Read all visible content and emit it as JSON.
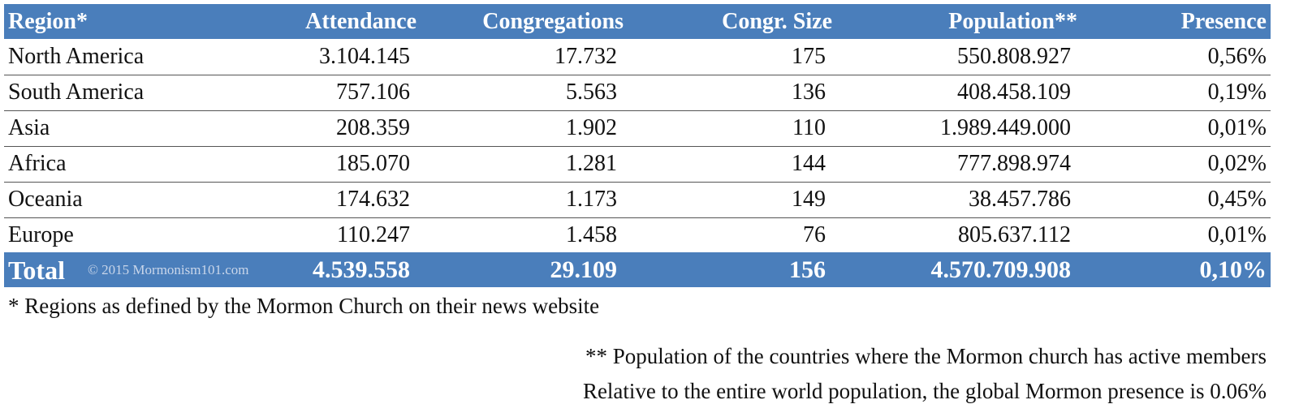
{
  "table": {
    "headers": [
      "Region*",
      "Attendance",
      "Congregations",
      "Congr. Size",
      "Population**",
      "Presence"
    ],
    "rows": [
      [
        "North America",
        "3.104.145",
        "17.732",
        "175",
        "550.808.927",
        "0,56%"
      ],
      [
        "South America",
        "757.106",
        "5.563",
        "136",
        "408.458.109",
        "0,19%"
      ],
      [
        "Asia",
        "208.359",
        "1.902",
        "110",
        "1.989.449.000",
        "0,01%"
      ],
      [
        "Africa",
        "185.070",
        "1.281",
        "144",
        "777.898.974",
        "0,02%"
      ],
      [
        "Oceania",
        "174.632",
        "1.173",
        "149",
        "38.457.786",
        "0,45%"
      ],
      [
        "Europe",
        "110.247",
        "1.458",
        "76",
        "805.637.112",
        "0,01%"
      ]
    ],
    "total": {
      "label": "Total",
      "watermark": "© 2015 Mormonism101.com",
      "cells": [
        "4.539.558",
        "29.109",
        "156",
        "4.570.709.908",
        "0,10%"
      ]
    }
  },
  "footnotes": [
    "* Regions as defined by the Mormon Church on their news website",
    "** Population of the countries where the Mormon church has active members",
    "Relative to the entire world population, the global Mormon presence is 0.06%"
  ]
}
